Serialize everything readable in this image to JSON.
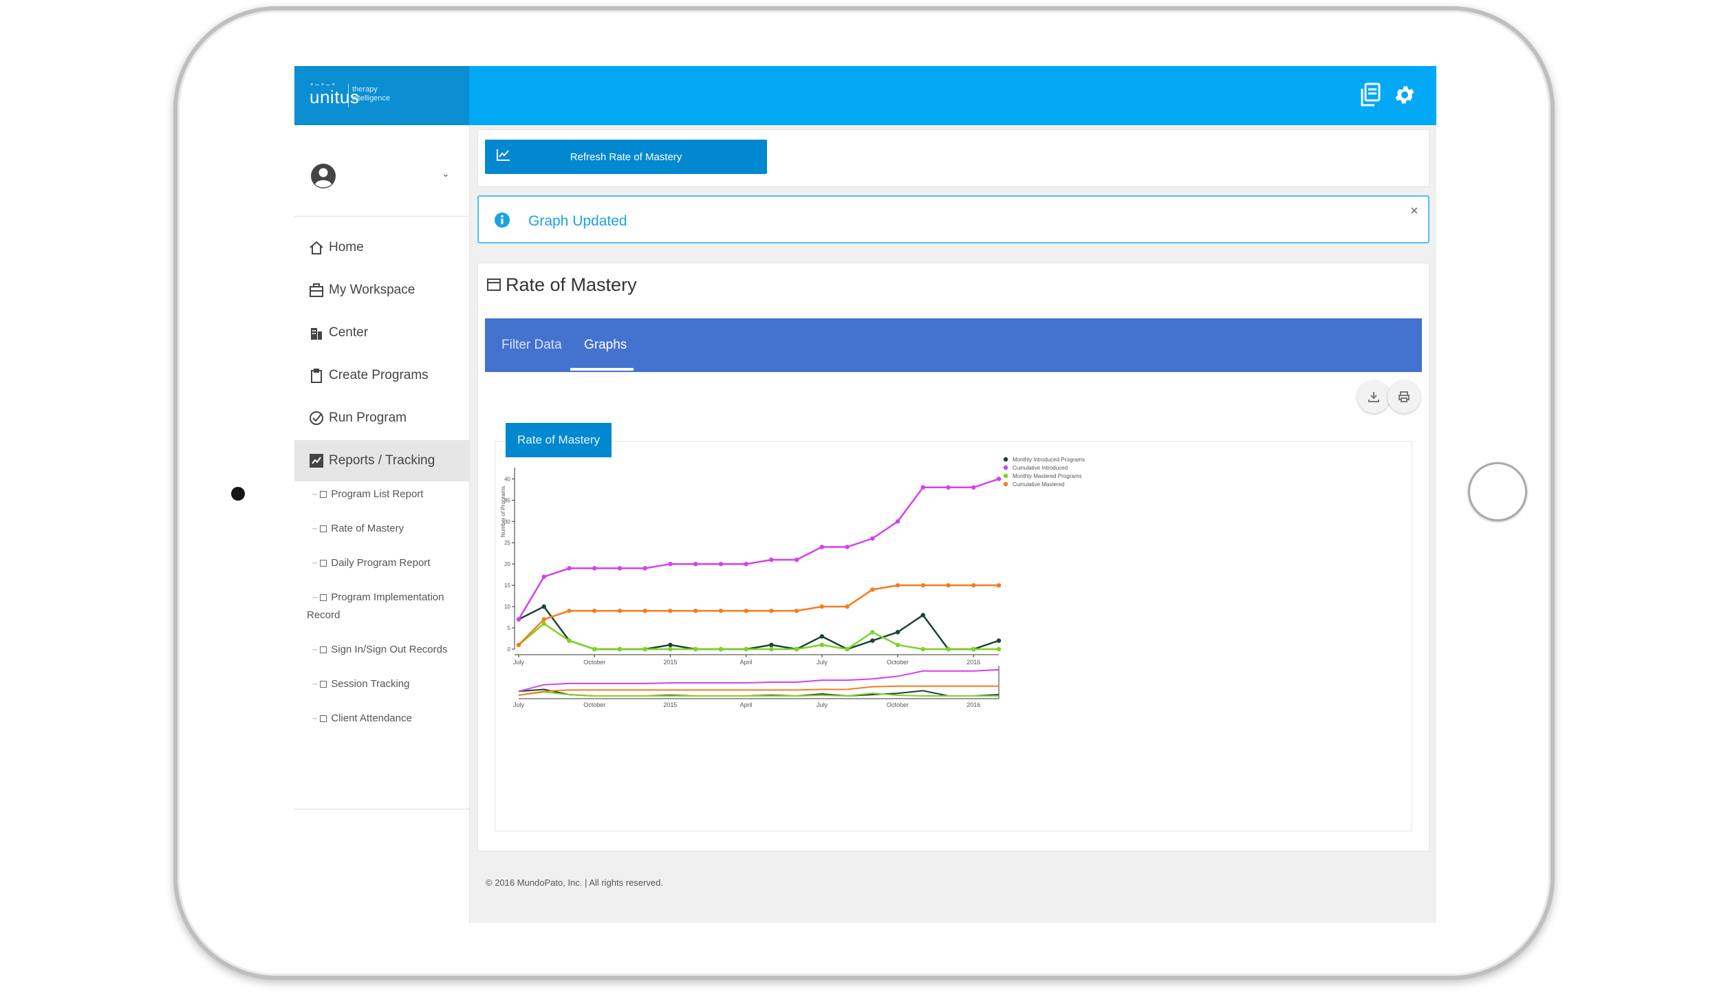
{
  "brand": {
    "name": "unitus",
    "tagline": "therapy intelligence"
  },
  "topbar": {
    "icons": [
      "copy-icon",
      "gear-icon"
    ]
  },
  "user": {
    "icon": "user-circle-icon"
  },
  "sidebar": {
    "items": [
      {
        "label": "Home",
        "icon": "home-icon"
      },
      {
        "label": "My Workspace",
        "icon": "briefcase-icon"
      },
      {
        "label": "Center",
        "icon": "building-icon"
      },
      {
        "label": "Create Programs",
        "icon": "clipboard-icon"
      },
      {
        "label": "Run Program",
        "icon": "check-circle-icon"
      },
      {
        "label": "Reports / Tracking",
        "icon": "chart-icon"
      }
    ],
    "sub_items": [
      {
        "label": "Program List Report"
      },
      {
        "label": "Rate of Mastery"
      },
      {
        "label": "Daily Program Report"
      },
      {
        "label": "Program Implementation",
        "label2": "Record"
      },
      {
        "label": "Sign In/Sign Out Records"
      },
      {
        "label": "Session Tracking"
      },
      {
        "label": "Client Attendance"
      }
    ]
  },
  "actions": {
    "refresh_label": "Refresh Rate of Mastery"
  },
  "alert": {
    "message": "Graph Updated",
    "close": "×"
  },
  "report": {
    "title": "Rate of Mastery",
    "tabs": [
      {
        "label": "Filter Data"
      },
      {
        "label": "Graphs"
      }
    ],
    "active_tab": "Graphs",
    "chart_tab_label": "Rate of Mastery"
  },
  "footer": {
    "text": "© 2016 MundoPato, Inc. | All rights reserved."
  },
  "chart_data": {
    "type": "line",
    "ylabel": "Number of Programs",
    "ylim": [
      0,
      42
    ],
    "yticks": [
      0,
      5,
      10,
      15,
      20,
      25,
      30,
      35,
      40
    ],
    "x_tick_labels": [
      {
        "label": "July",
        "index": 0
      },
      {
        "label": "October",
        "index": 3
      },
      {
        "label": "2015",
        "index": 6
      },
      {
        "label": "April",
        "index": 9
      },
      {
        "label": "July",
        "index": 12
      },
      {
        "label": "October",
        "index": 15
      },
      {
        "label": "2016",
        "index": 18
      }
    ],
    "n_points": 20,
    "legend_position": "top-right",
    "series": [
      {
        "name": "Monthly Introduced Programs",
        "color": "#1b4332",
        "values": [
          7,
          10,
          2,
          0,
          0,
          0,
          1,
          0,
          0,
          0,
          1,
          0,
          3,
          0,
          2,
          4,
          8,
          0,
          0,
          2
        ]
      },
      {
        "name": "Cumulative Introduced",
        "color": "#d63ff0",
        "values": [
          7,
          17,
          19,
          19,
          19,
          19,
          20,
          20,
          20,
          20,
          21,
          21,
          24,
          24,
          26,
          30,
          38,
          38,
          38,
          40
        ]
      },
      {
        "name": "Monthly Mastered Programs",
        "color": "#7ed321",
        "values": [
          1,
          6,
          2,
          0,
          0,
          0,
          0,
          0,
          0,
          0,
          0,
          0,
          1,
          0,
          4,
          1,
          0,
          0,
          0,
          0
        ]
      },
      {
        "name": "Cumulative Mastered",
        "color": "#f57c1f",
        "values": [
          1,
          7,
          9,
          9,
          9,
          9,
          9,
          9,
          9,
          9,
          9,
          9,
          10,
          10,
          14,
          15,
          15,
          15,
          15,
          15
        ]
      }
    ]
  }
}
